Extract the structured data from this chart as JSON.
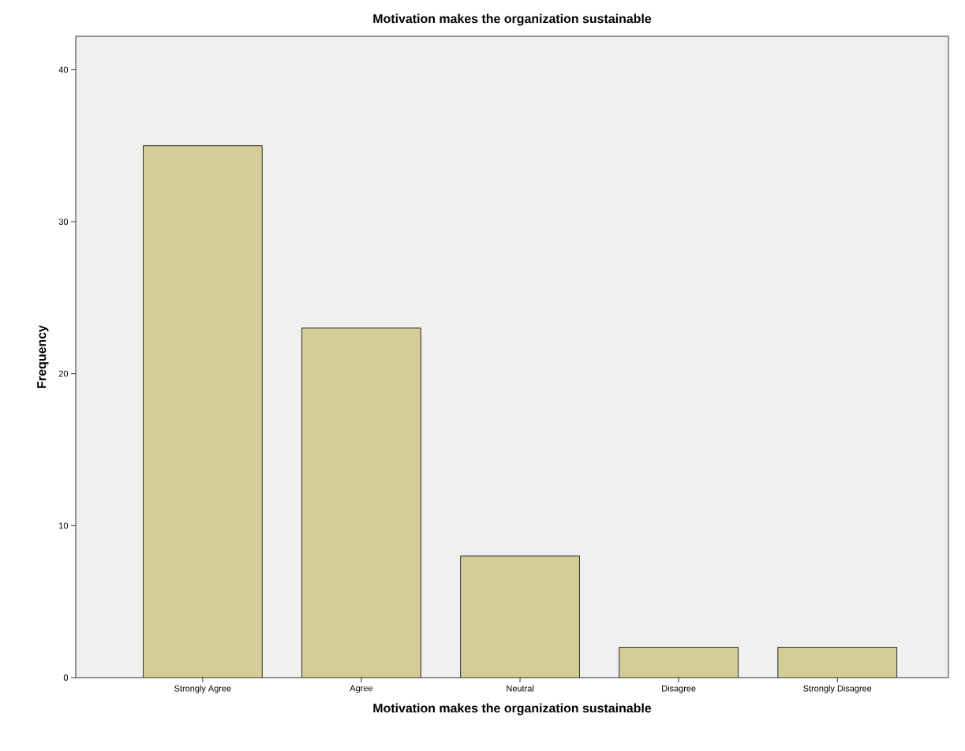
{
  "chart_data": {
    "type": "bar",
    "title": "Motivation makes the organization sustainable",
    "xlabel": "Motivation makes the organization sustainable",
    "ylabel": "Frequency",
    "categories": [
      "Strongly Agree",
      "Agree",
      "Neutral",
      "Disagree",
      "Strongly Disagree"
    ],
    "values": [
      35,
      23,
      8,
      2,
      2
    ],
    "color": "#d3ce97",
    "ylim": [
      0,
      42.2
    ],
    "yticks": [
      0,
      10,
      20,
      30,
      40
    ],
    "grid": false
  }
}
